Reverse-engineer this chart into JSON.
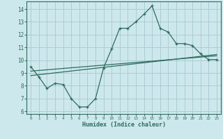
{
  "main_x": [
    0,
    1,
    2,
    3,
    4,
    5,
    6,
    7,
    8,
    9,
    10,
    11,
    12,
    13,
    14,
    15,
    16,
    17,
    18,
    19,
    20,
    21,
    22,
    23
  ],
  "main_y": [
    9.5,
    8.7,
    7.8,
    8.2,
    8.1,
    7.0,
    6.35,
    6.35,
    7.0,
    9.4,
    10.9,
    12.5,
    12.5,
    13.0,
    13.6,
    14.25,
    12.5,
    12.2,
    11.3,
    11.3,
    11.15,
    10.5,
    10.05,
    10.05
  ],
  "trend1_x": [
    0,
    23
  ],
  "trend1_y": [
    8.8,
    10.45
  ],
  "trend2_x": [
    0,
    23
  ],
  "trend2_y": [
    9.15,
    10.35
  ],
  "line_color": "#2e6b5e",
  "bg_color": "#cde8ec",
  "grid_color": "#aacdd4",
  "xlabel": "Humidex (Indice chaleur)",
  "xlim": [
    -0.5,
    23.5
  ],
  "ylim": [
    5.8,
    14.6
  ],
  "yticks": [
    6,
    7,
    8,
    9,
    10,
    11,
    12,
    13,
    14
  ],
  "xticks": [
    0,
    1,
    2,
    3,
    4,
    5,
    6,
    7,
    8,
    9,
    10,
    11,
    12,
    13,
    14,
    15,
    16,
    17,
    18,
    19,
    20,
    21,
    22,
    23
  ]
}
